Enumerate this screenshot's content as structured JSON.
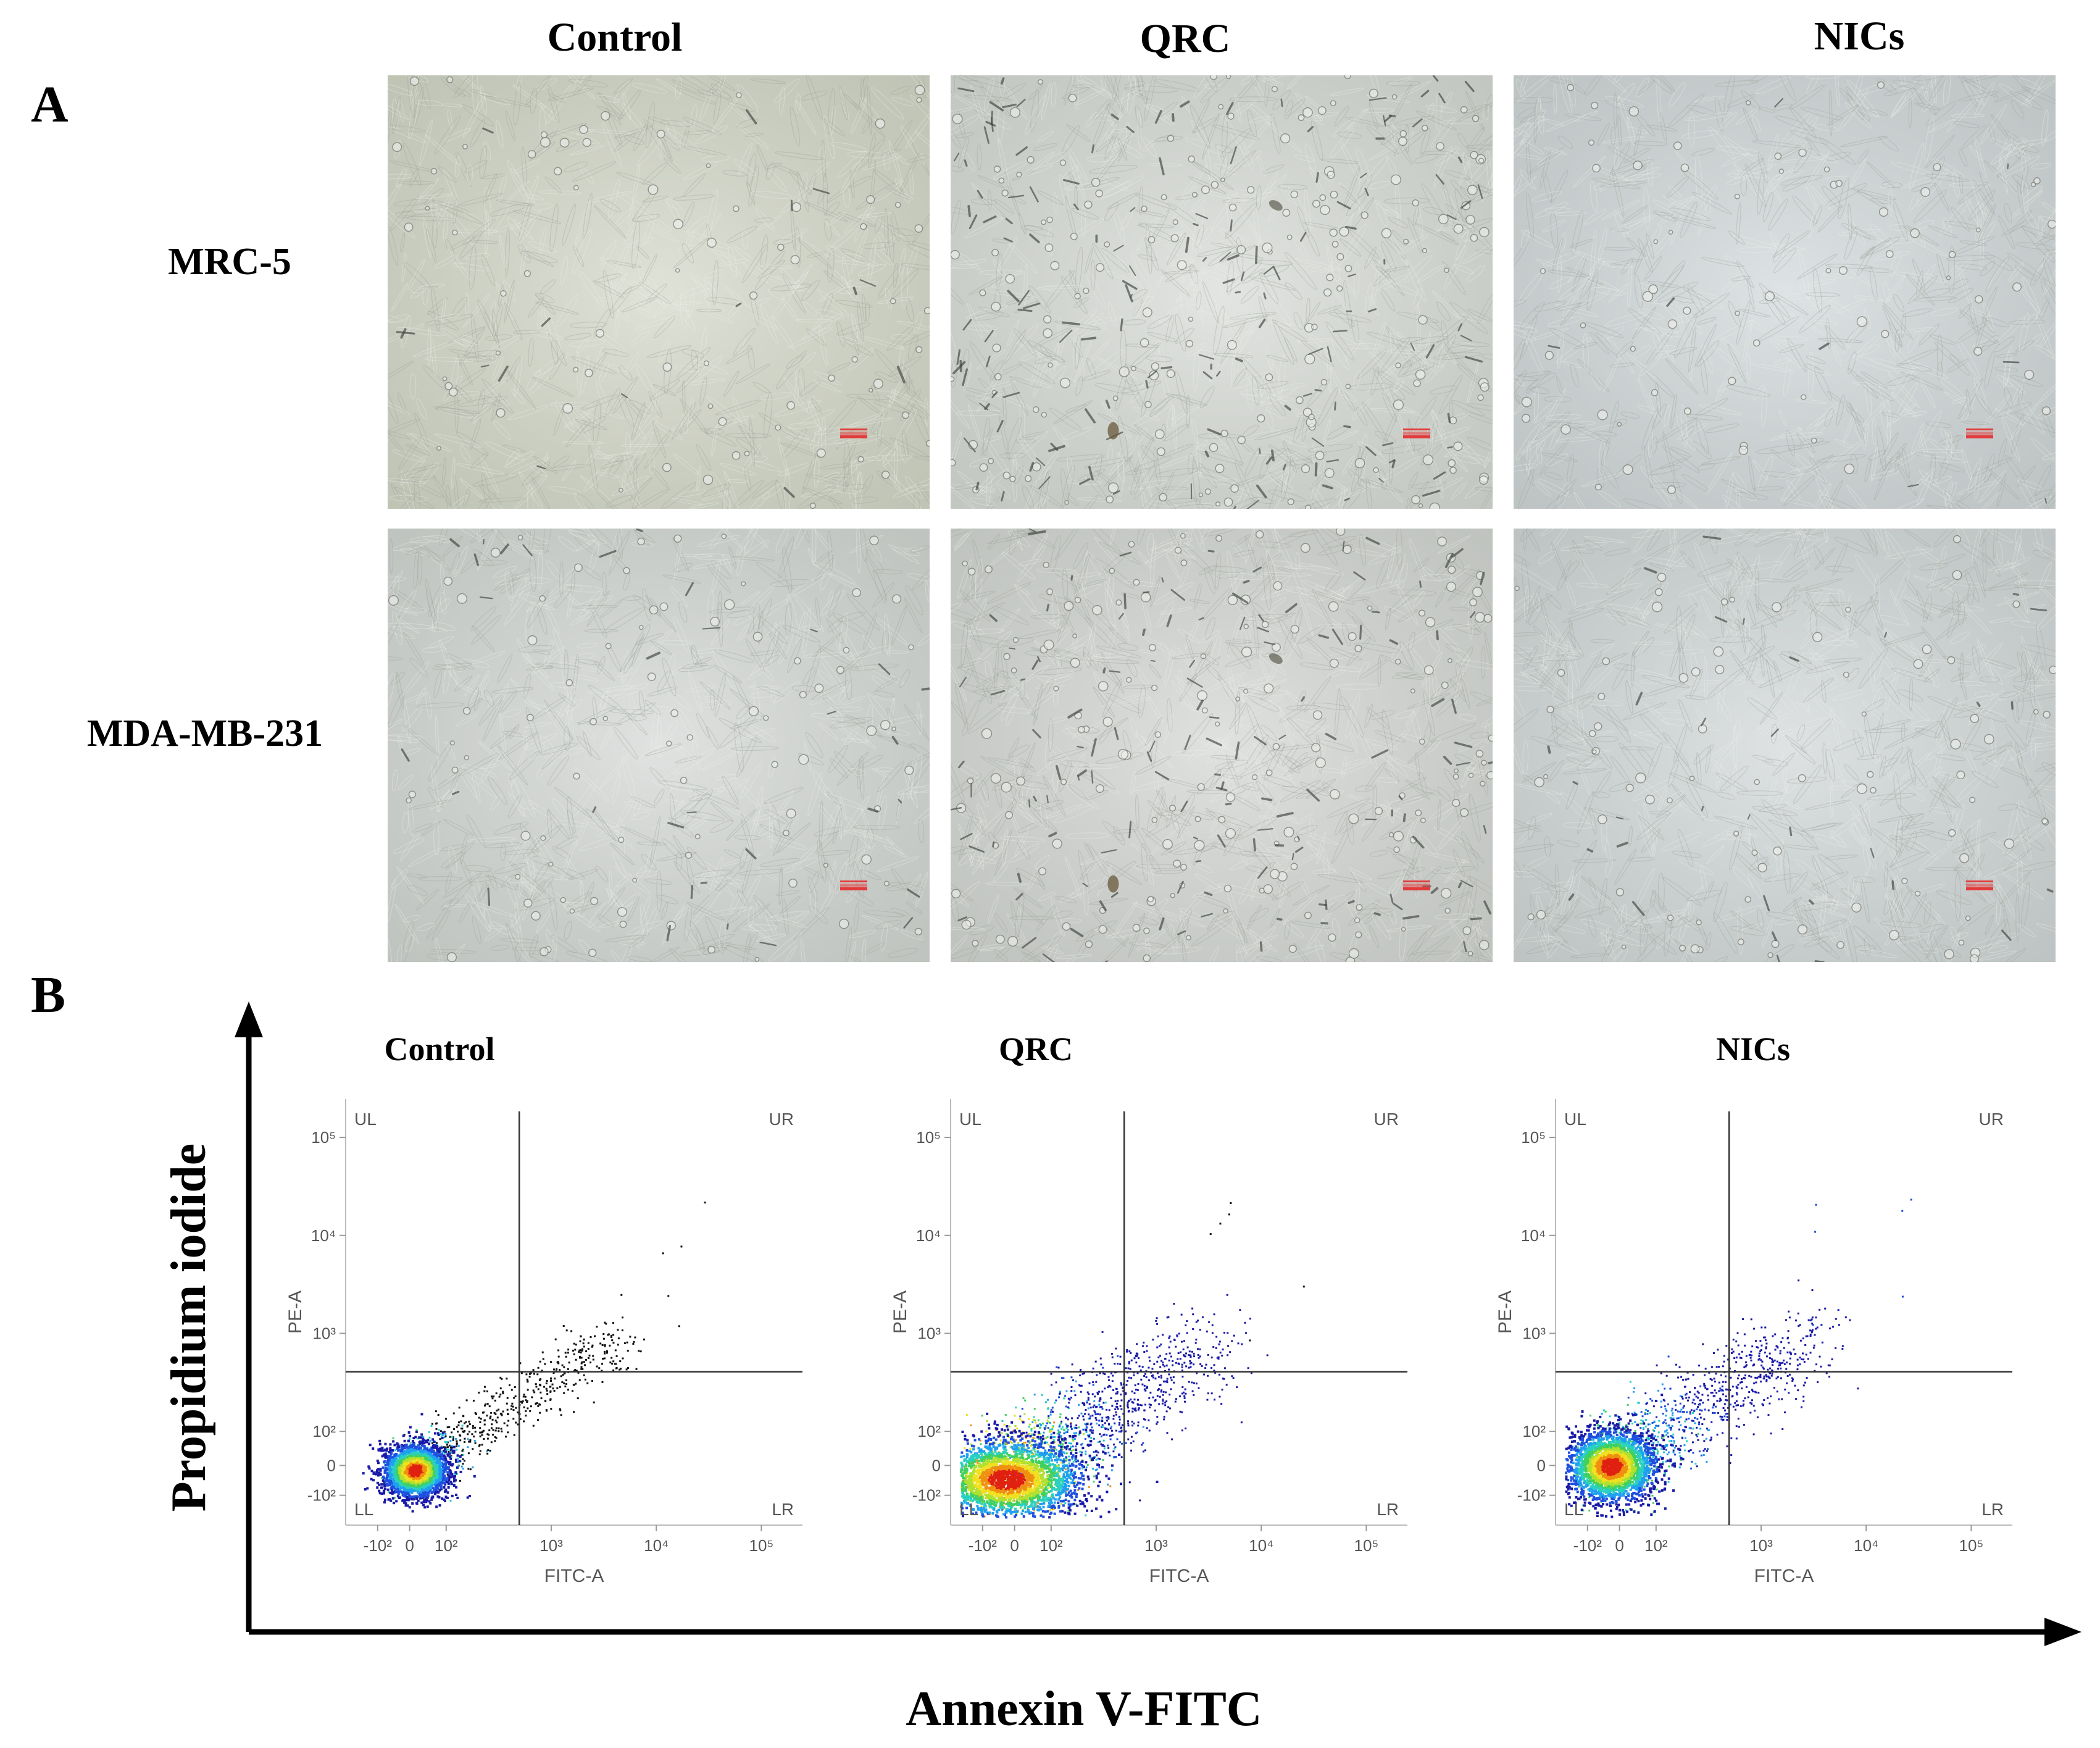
{
  "panel_a": {
    "letter": "A",
    "columns": [
      "Control",
      "QRC",
      "NICs"
    ],
    "rows": [
      "MRC-5",
      "MDA-MB-231"
    ],
    "images": [
      {
        "row": "MRC-5",
        "column": "Control",
        "tint": "#cfd3c2",
        "debris": 0.1
      },
      {
        "row": "MRC-5",
        "column": "QRC",
        "tint": "#d3d7d2",
        "debris": 1.0
      },
      {
        "row": "MRC-5",
        "column": "NICs",
        "tint": "#ccd3d6",
        "debris": 0.05
      },
      {
        "row": "MDA-MB-231",
        "column": "Control",
        "tint": "#cfd3d0",
        "debris": 0.2
      },
      {
        "row": "MDA-MB-231",
        "column": "QRC",
        "tint": "#cfd2cf",
        "debris": 0.9
      },
      {
        "row": "MDA-MB-231",
        "column": "NICs",
        "tint": "#cdd3d5",
        "debris": 0.2
      }
    ]
  },
  "panel_b": {
    "letter": "B",
    "x_axis_title": "Annexin V-FITC",
    "y_axis_title": "Propidium iodide"
  },
  "chart_data": [
    {
      "type": "scatter",
      "title": "Control",
      "xlabel": "FITC-A",
      "ylabel": "PE-A",
      "quadrants": [
        "UL",
        "UR",
        "LL",
        "LR"
      ],
      "x_ticks": [
        "-10²",
        "0",
        "10²",
        "10³",
        "10⁴",
        "10⁵"
      ],
      "y_ticks": [
        "-10²",
        "0",
        "10²",
        "10³",
        "10⁴",
        "10⁵"
      ],
      "population": {
        "core_x": 0.15,
        "core_y": 0.13,
        "spread": "compact",
        "tail": "light"
      }
    },
    {
      "type": "scatter",
      "title": "QRC",
      "xlabel": "FITC-A",
      "ylabel": "PE-A",
      "quadrants": [
        "UL",
        "UR",
        "LL",
        "LR"
      ],
      "x_ticks": [
        "-10²",
        "0",
        "10²",
        "10³",
        "10⁴",
        "10⁵"
      ],
      "y_ticks": [
        "-10²",
        "0",
        "10²",
        "10³",
        "10⁴",
        "10⁵"
      ],
      "population": {
        "core_x": 0.12,
        "core_y": 0.11,
        "spread": "wide",
        "tail": "heavy"
      }
    },
    {
      "type": "scatter",
      "title": "NICs",
      "xlabel": "FITC-A",
      "ylabel": "PE-A",
      "quadrants": [
        "UL",
        "UR",
        "LL",
        "LR"
      ],
      "x_ticks": [
        "-10²",
        "0",
        "10²",
        "10³",
        "10⁴",
        "10⁵"
      ],
      "y_ticks": [
        "-10²",
        "0",
        "10²",
        "10³",
        "10⁴",
        "10⁵"
      ],
      "population": {
        "core_x": 0.12,
        "core_y": 0.14,
        "spread": "diffuse",
        "tail": "medium"
      }
    }
  ]
}
